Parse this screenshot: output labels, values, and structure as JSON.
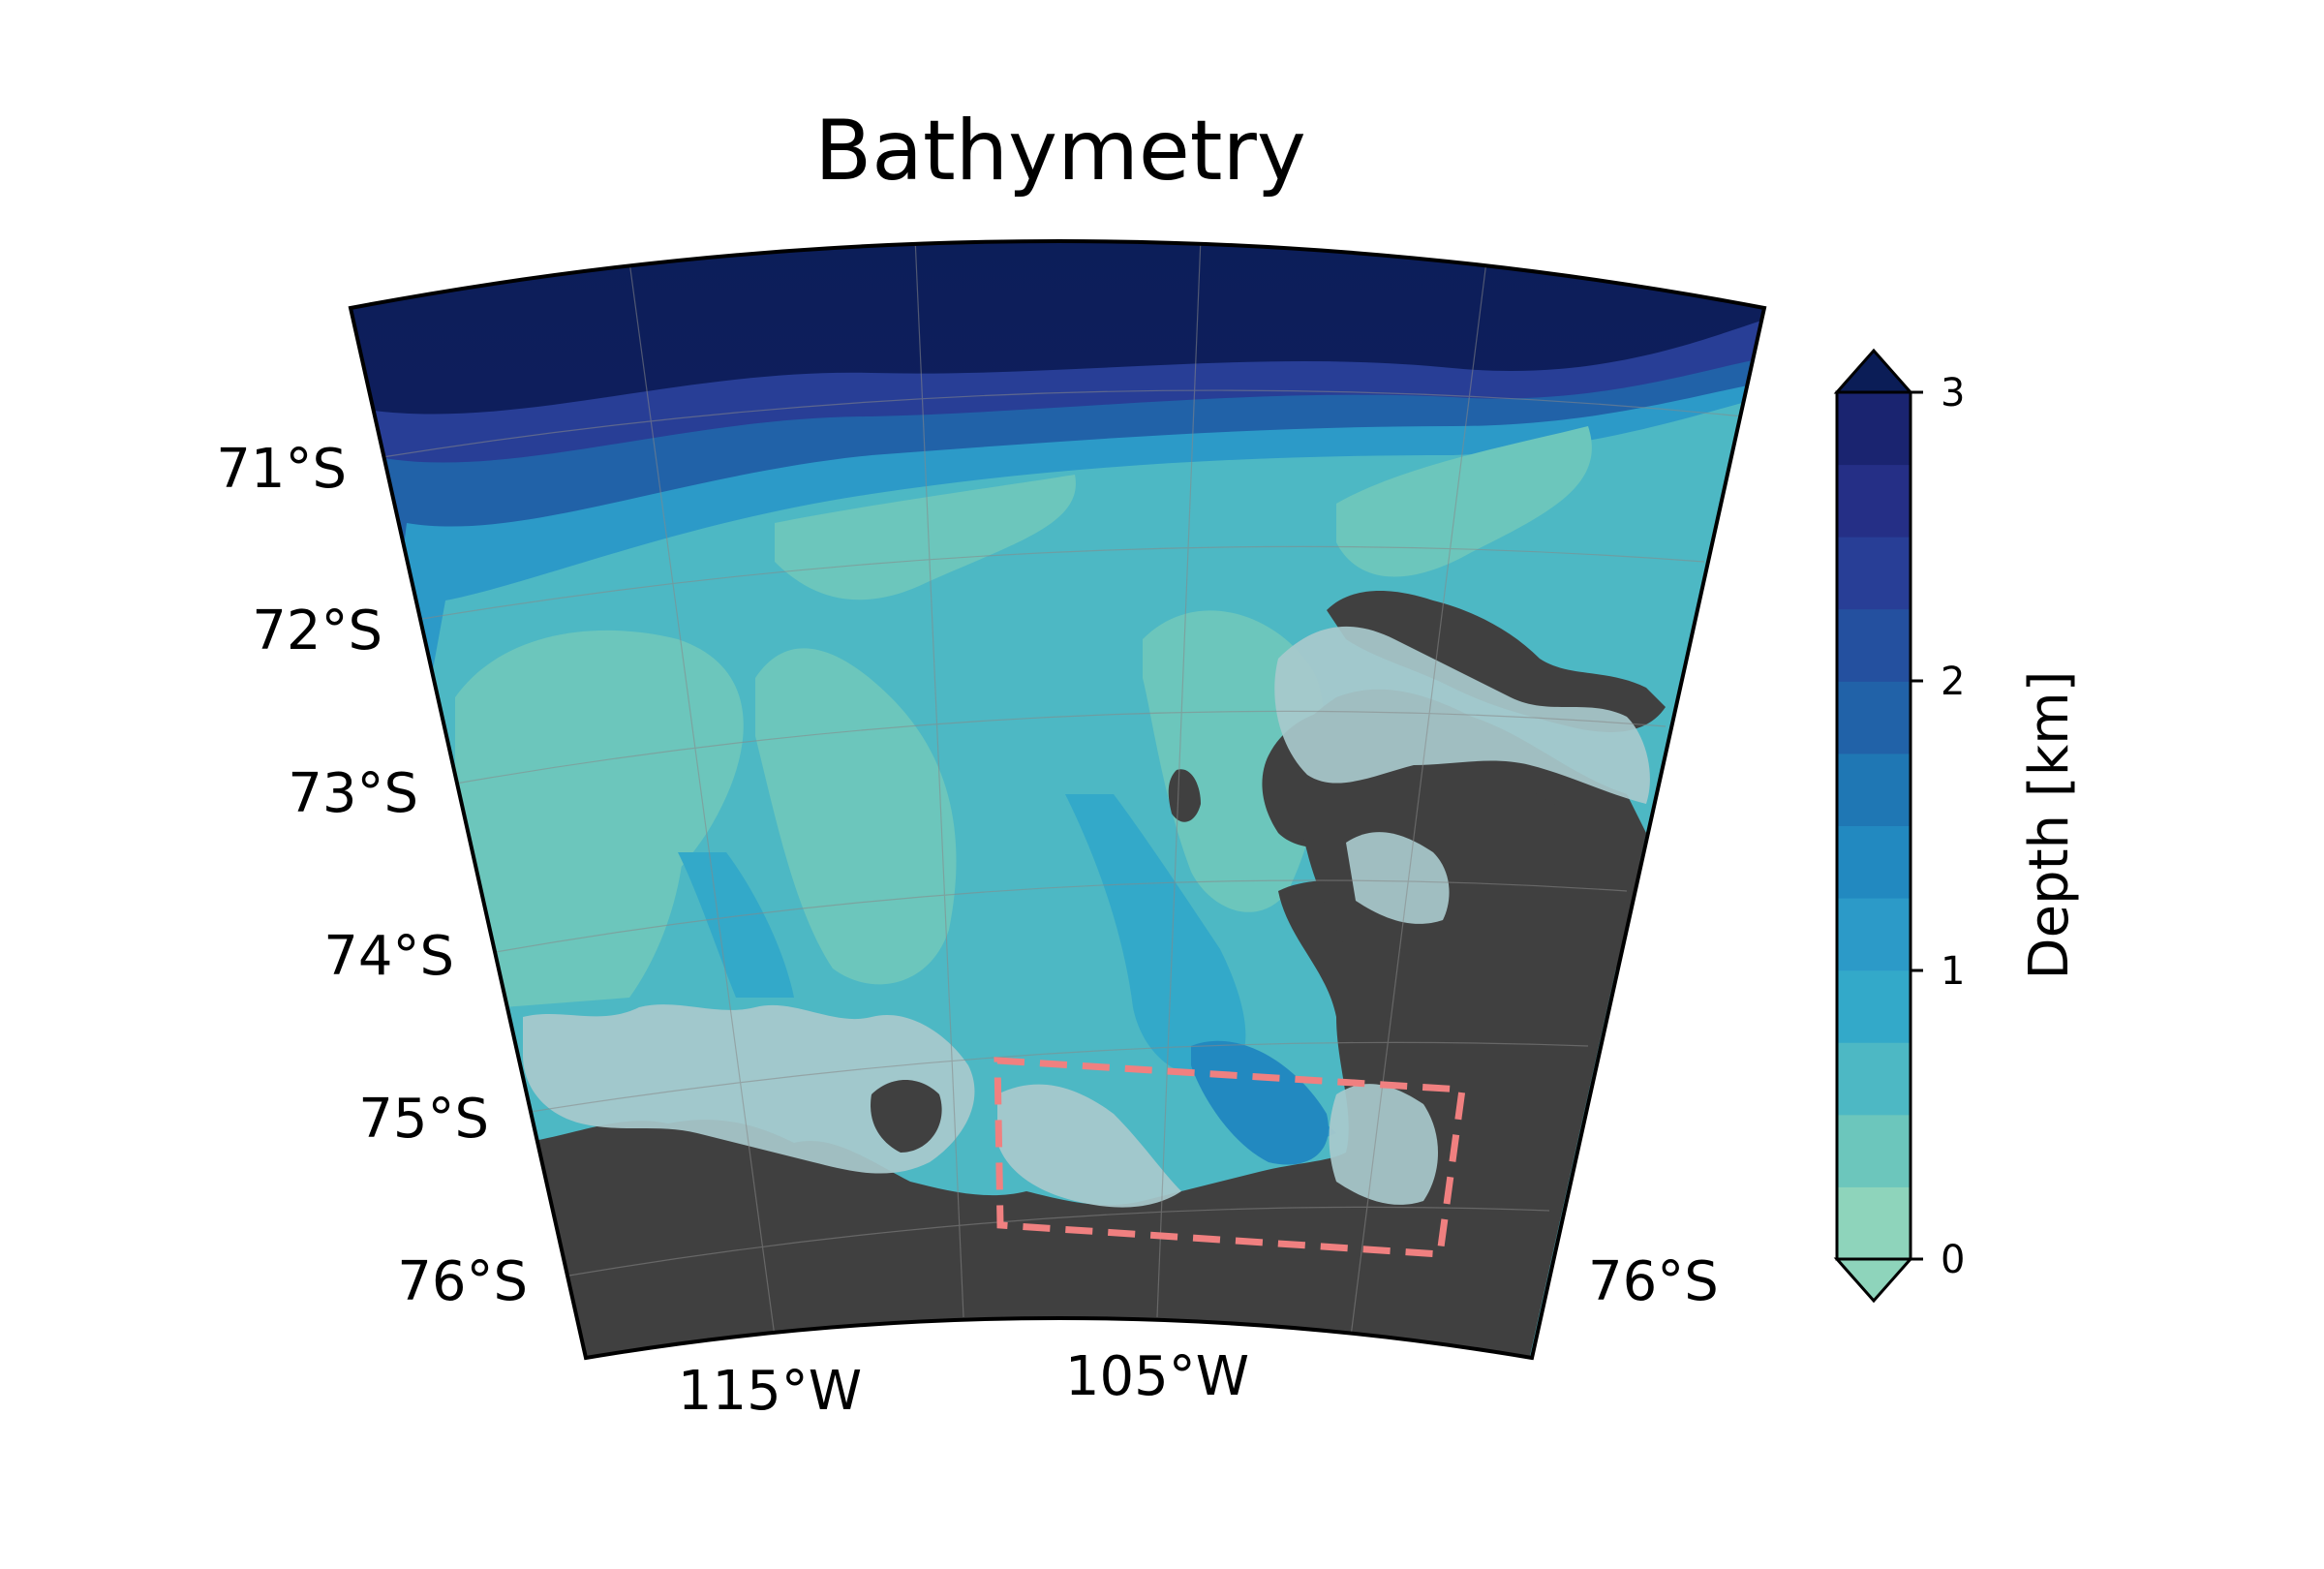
{
  "title": "Bathymetry",
  "lat_labels_left": [
    "71°S",
    "72°S",
    "73°S",
    "74°S",
    "75°S",
    "76°S"
  ],
  "lat_labels_right": [
    "76°S"
  ],
  "lon_labels": [
    "115°W",
    "105°W"
  ],
  "colorbar": {
    "label": "Depth [km]",
    "ticks": [
      "0",
      "1",
      "2",
      "3"
    ],
    "levels": [
      "#8ed4bb",
      "#6cc6bc",
      "#4db8c4",
      "#33a9c9",
      "#2c9ac8",
      "#2289c0",
      "#1f77b4",
      "#2162a8",
      "#24509f",
      "#283e96",
      "#252f86",
      "#1a2470"
    ]
  },
  "colors": {
    "land": "#404040",
    "ice_shelf": "#a8c9cc",
    "deep_ocean": "#0b1d57",
    "shelf_shallow": "#6cc6bc",
    "shelf_mid": "#4db8c4",
    "trough": "#33a9c9",
    "box": "#f08080"
  },
  "chart_data": {
    "type": "heatmap",
    "title": "Bathymetry",
    "variable": "Depth [km]",
    "colorbar_range": [
      0,
      3
    ],
    "colorbar_ticks": [
      0,
      1,
      2,
      3
    ],
    "colorbar_extend": "both",
    "latitude_ticks": [
      "71°S",
      "72°S",
      "73°S",
      "74°S",
      "75°S",
      "76°S"
    ],
    "longitude_ticks": [
      "115°W",
      "105°W"
    ],
    "projection": "conic sector",
    "highlight_box": "dashed, salmon"
  }
}
